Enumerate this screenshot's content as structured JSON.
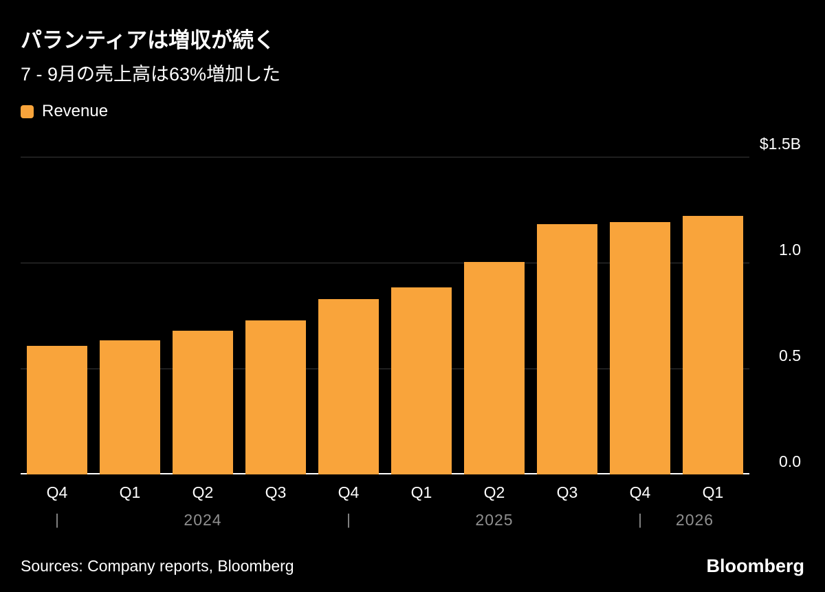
{
  "header": {
    "title": "パランティアは増収が続く",
    "subtitle": "7 - 9月の売上高は63%増加した"
  },
  "legend": {
    "items": [
      {
        "label": "Revenue",
        "swatch_color": "#F9A43B"
      }
    ]
  },
  "chart_data": {
    "type": "bar",
    "title": "パランティアは増収が続く",
    "subtitle": "7 - 9月の売上高は63%増加した",
    "unit": "$B",
    "categories": [
      "Q4",
      "Q1",
      "Q2",
      "Q3",
      "Q4",
      "Q1",
      "Q2",
      "Q3",
      "Q4",
      "Q1"
    ],
    "series": [
      {
        "name": "Revenue",
        "values": [
          0.608,
          0.634,
          0.678,
          0.726,
          0.828,
          0.884,
          1.004,
          1.181,
          1.19,
          1.22
        ]
      }
    ],
    "ylim": [
      0,
      1.5
    ],
    "y_ticks": [
      {
        "label": "$1.5B",
        "value": 1.5
      },
      {
        "label": "1.0",
        "value": 1.0
      },
      {
        "label": "0.5",
        "value": 0.5
      },
      {
        "label": "0.0",
        "value": 0.0
      }
    ],
    "year_ticks_at_slots": [
      0,
      4,
      8
    ],
    "year_labels": [
      {
        "text": "2024",
        "slot": 2.0
      },
      {
        "text": "2025",
        "slot": 6.0
      },
      {
        "text": "2026",
        "slot": 8.75
      }
    ],
    "bar_color": "#F9A43B",
    "grid": "horizontal",
    "legend_position": "top-left"
  },
  "colors": {
    "background": "#000000",
    "bar": "#F9A43B",
    "gridline": "#3a3a3a",
    "baseline": "#ffffff",
    "year_text": "#8f8f8f",
    "text": "#ffffff"
  },
  "footer": {
    "sources": "Sources: Company reports, Bloomberg",
    "brand": "Bloomberg"
  }
}
